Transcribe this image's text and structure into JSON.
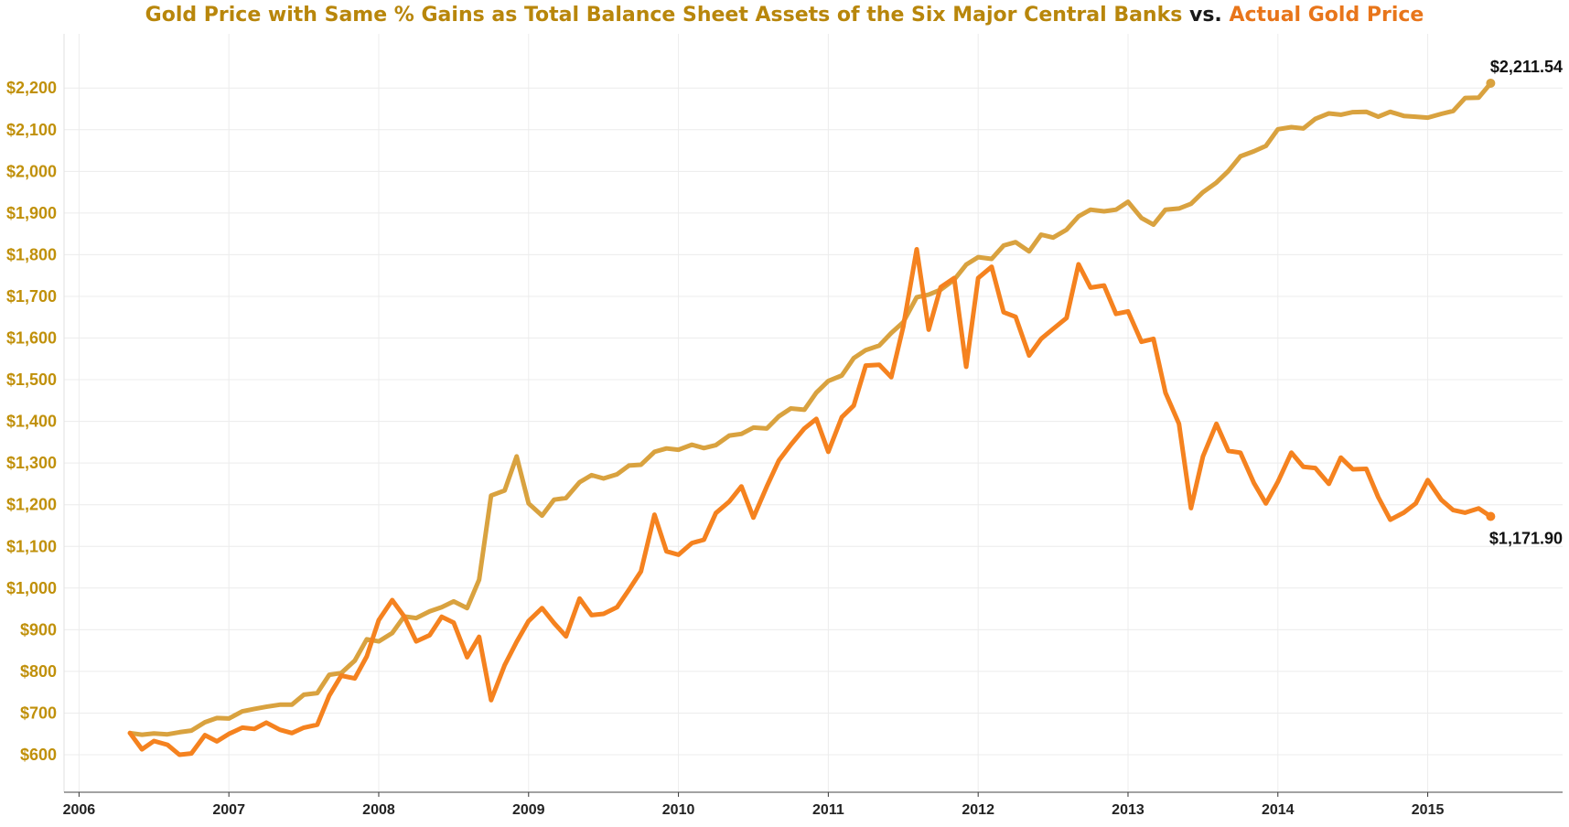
{
  "chart_data": {
    "type": "line",
    "title_parts": [
      {
        "text": "Gold Price with Same % Gains as Total Balance Sheet Assets of the Six Major Central Banks",
        "color": "#b8860b"
      },
      {
        "text": " vs. ",
        "color": "#1a1a1a"
      },
      {
        "text": "Actual Gold Price",
        "color": "#e8751a"
      }
    ],
    "xlabel": "",
    "ylabel": "",
    "xlim": [
      2005.9,
      2015.9
    ],
    "ylim": [
      510,
      2330
    ],
    "yticks": [
      600,
      700,
      800,
      900,
      1000,
      1100,
      1200,
      1300,
      1400,
      1500,
      1600,
      1700,
      1800,
      1900,
      2000,
      2100,
      2200
    ],
    "ytick_labels": [
      "$600",
      "$700",
      "$800",
      "$900",
      "$1,000",
      "$1,100",
      "$1,200",
      "$1,300",
      "$1,400",
      "$1,500",
      "$1,600",
      "$1,700",
      "$1,800",
      "$1,900",
      "$2,000",
      "$2,100",
      "$2,200"
    ],
    "xticks": [
      2006,
      2007,
      2008,
      2009,
      2010,
      2011,
      2012,
      2013,
      2014,
      2015
    ],
    "xtick_labels": [
      "2006",
      "2007",
      "2008",
      "2009",
      "2010",
      "2011",
      "2012",
      "2013",
      "2014",
      "2015"
    ],
    "grid": true,
    "tick_color": "#c0900a",
    "x": [
      2006.34,
      2006.42,
      2006.5,
      2006.59,
      2006.67,
      2006.75,
      2006.84,
      2006.92,
      2007.0,
      2007.09,
      2007.17,
      2007.25,
      2007.34,
      2007.42,
      2007.5,
      2007.59,
      2007.67,
      2007.75,
      2007.84,
      2007.92,
      2008.0,
      2008.09,
      2008.17,
      2008.25,
      2008.34,
      2008.42,
      2008.5,
      2008.59,
      2008.67,
      2008.75,
      2008.84,
      2008.92,
      2009.0,
      2009.09,
      2009.17,
      2009.25,
      2009.34,
      2009.42,
      2009.5,
      2009.59,
      2009.67,
      2009.75,
      2009.84,
      2009.92,
      2010.0,
      2010.09,
      2010.17,
      2010.25,
      2010.34,
      2010.42,
      2010.5,
      2010.59,
      2010.67,
      2010.75,
      2010.84,
      2010.92,
      2011.0,
      2011.09,
      2011.17,
      2011.25,
      2011.34,
      2011.42,
      2011.5,
      2011.59,
      2011.67,
      2011.75,
      2011.84,
      2011.92,
      2012.0,
      2012.09,
      2012.17,
      2012.25,
      2012.34,
      2012.42,
      2012.5,
      2012.59,
      2012.67,
      2012.75,
      2012.84,
      2012.92,
      2013.0,
      2013.09,
      2013.17,
      2013.25,
      2013.34,
      2013.42,
      2013.5,
      2013.59,
      2013.67,
      2013.75,
      2013.84,
      2013.92,
      2014.0,
      2014.09,
      2014.17,
      2014.25,
      2014.34,
      2014.42,
      2014.5,
      2014.59,
      2014.67,
      2014.75,
      2014.84,
      2014.92,
      2015.0,
      2015.09,
      2015.17,
      2015.25,
      2015.34,
      2015.42
    ],
    "series": [
      {
        "name": "Gold Price with Same % Gains as Total Balance Sheet Assets of the Six Major Central Banks",
        "color": "#d9a23f",
        "end_label": "$2,211.54",
        "values": [
          652,
          648,
          651,
          649,
          654,
          658,
          678,
          688,
          687,
          704,
          710,
          715,
          720,
          720,
          744,
          748,
          792,
          796,
          826,
          877,
          872,
          892,
          932,
          928,
          944,
          954,
          968,
          952,
          1020,
          1222,
          1234,
          1316,
          1203,
          1174,
          1212,
          1216,
          1254,
          1271,
          1263,
          1273,
          1294,
          1296,
          1327,
          1335,
          1332,
          1344,
          1336,
          1343,
          1366,
          1370,
          1385,
          1383,
          1412,
          1431,
          1428,
          1469,
          1497,
          1510,
          1552,
          1571,
          1582,
          1612,
          1638,
          1698,
          1704,
          1716,
          1740,
          1776,
          1794,
          1790,
          1822,
          1830,
          1808,
          1848,
          1841,
          1860,
          1892,
          1908,
          1904,
          1908,
          1927,
          1888,
          1872,
          1908,
          1911,
          1922,
          1950,
          1973,
          2001,
          2036,
          2048,
          2061,
          2101,
          2106,
          2103,
          2126,
          2139,
          2136,
          2142,
          2143,
          2131,
          2143,
          2133,
          2131,
          2129,
          2138,
          2145,
          2176,
          2177,
          2211.54
        ]
      },
      {
        "name": "Actual Gold Price",
        "color": "#f5821f",
        "end_label": "$1,171.90",
        "values": [
          652,
          613,
          633,
          624,
          600,
          603,
          647,
          632,
          650,
          665,
          662,
          677,
          660,
          652,
          665,
          672,
          742,
          790,
          783,
          836,
          923,
          971,
          932,
          872,
          887,
          931,
          917,
          834,
          883,
          731,
          815,
          871,
          921,
          952,
          916,
          884,
          975,
          935,
          938,
          954,
          996,
          1040,
          1176,
          1088,
          1080,
          1108,
          1116,
          1180,
          1208,
          1244,
          1169,
          1244,
          1306,
          1344,
          1383,
          1406,
          1327,
          1410,
          1438,
          1534,
          1536,
          1506,
          1627,
          1813,
          1620,
          1722,
          1744,
          1531,
          1744,
          1771,
          1662,
          1651,
          1558,
          1598,
          1622,
          1648,
          1777,
          1721,
          1726,
          1658,
          1664,
          1591,
          1598,
          1469,
          1394,
          1192,
          1316,
          1394,
          1329,
          1325,
          1252,
          1203,
          1255,
          1325,
          1291,
          1288,
          1250,
          1313,
          1285,
          1286,
          1218,
          1164,
          1181,
          1203,
          1259,
          1212,
          1187,
          1181,
          1191,
          1171.9
        ]
      }
    ]
  }
}
